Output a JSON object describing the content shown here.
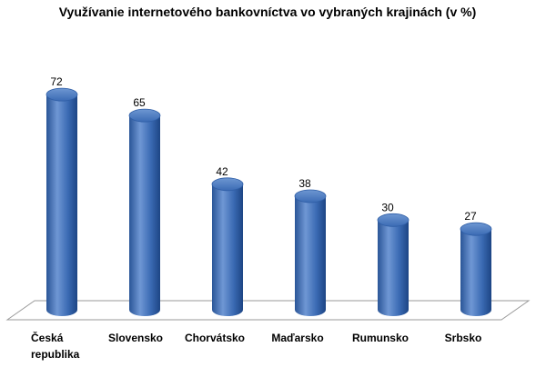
{
  "chart_data": {
    "type": "bar",
    "style": "3d-cylinder",
    "title": "Využívanie internetového bankovníctva vo vybraných krajinách (v %)",
    "categories": [
      [
        "Česká",
        "republika"
      ],
      [
        "Slovensko"
      ],
      [
        "Chorvátsko"
      ],
      [
        "Maďarsko"
      ],
      [
        "Rumunsko"
      ],
      [
        "Srbsko"
      ]
    ],
    "values": [
      72,
      65,
      42,
      38,
      30,
      27
    ],
    "ylim": [
      0,
      80
    ],
    "grid": false,
    "legend": "none",
    "colors": {
      "bar_light": "#6f97d4",
      "bar_mid": "#3a6ab3",
      "bar_dark": "#1d4584",
      "cap_top": "#4f7fc6",
      "floor": "#9a9a9a"
    }
  }
}
